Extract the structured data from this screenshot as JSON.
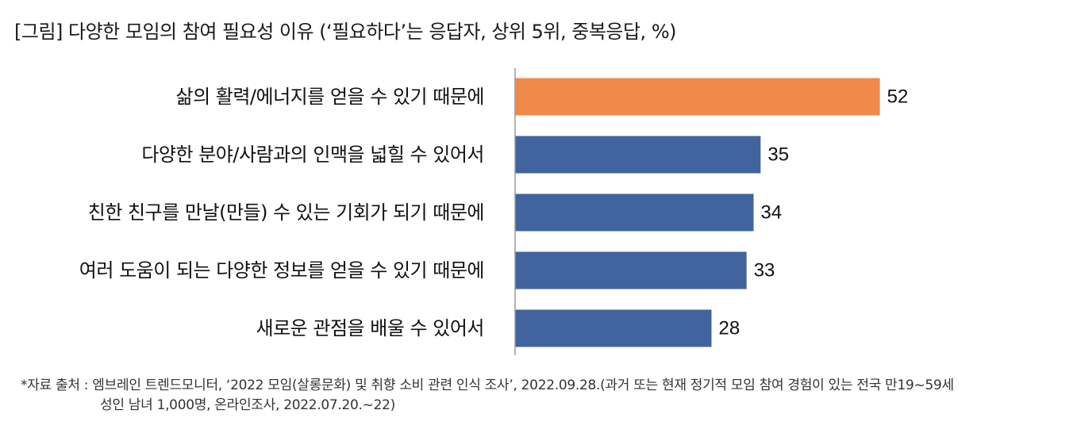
{
  "title": "[그림] 다양한 모임의 참여 필요성 이유 (‘필요하다’는 응답자, 상위 5위, 중복응답, %)",
  "source_line1": "*자료 출처 : 엠브레인 트렌드모니터, ‘2022 모임(살롱문화) 및 취향 소비 관련 인식 조사’, 2022.09.28.(과거 또는 현재 정기적 모임 참여 경험이 있는 전국 만19~59세",
  "source_line2": "성인 남녀 1,000명, 온라인조사, 2022.07.20.~22)",
  "colors": {
    "highlight": "#F0894A",
    "default": "#41649E",
    "axis": "#999999"
  },
  "chart_data": {
    "type": "bar",
    "orientation": "horizontal",
    "categories": [
      "삶의 활력/에너지를 얻을 수 있기 때문에",
      "다양한 분야/사람과의 인맥을 넓힐 수 있어서",
      "친한 친구를 만날(만들) 수 있는 기회가 되기 때문에",
      "여러 도움이 되는 다양한 정보를 얻을 수 있기 때문에",
      "새로운 관점을 배울 수 있어서"
    ],
    "values": [
      52,
      35,
      34,
      33,
      28
    ],
    "highlight_index": 0,
    "xlim": [
      0,
      56
    ],
    "grid": false
  }
}
